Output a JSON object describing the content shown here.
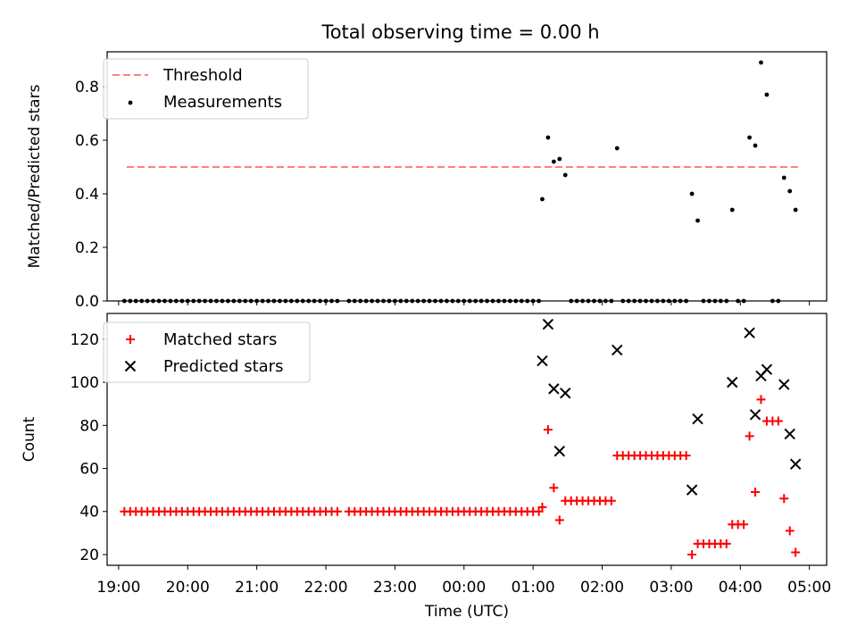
{
  "chart_data": [
    {
      "type": "scatter",
      "title": "Total observing time = 0.00 h",
      "xlabel": "",
      "ylabel": "Matched/Predicted stars",
      "xlim": [
        "18:50",
        "05:15"
      ],
      "ylim": [
        0,
        0.93
      ],
      "yticks": [
        "0.0",
        "0.2",
        "0.4",
        "0.6",
        "0.8"
      ],
      "legend": "upper-left",
      "threshold": {
        "name": "Threshold",
        "value": 0.5,
        "x_start": "19:07",
        "x_end": "04:50",
        "color": "#ff7f7f"
      },
      "series": [
        {
          "name": "Measurements",
          "color": "#000000",
          "points": [
            [
              "19:05",
              0
            ],
            [
              "19:10",
              0
            ],
            [
              "19:15",
              0
            ],
            [
              "19:20",
              0
            ],
            [
              "19:25",
              0
            ],
            [
              "19:30",
              0
            ],
            [
              "19:35",
              0
            ],
            [
              "19:40",
              0
            ],
            [
              "19:45",
              0
            ],
            [
              "19:50",
              0
            ],
            [
              "19:55",
              0
            ],
            [
              "20:00",
              0
            ],
            [
              "20:05",
              0
            ],
            [
              "20:10",
              0
            ],
            [
              "20:15",
              0
            ],
            [
              "20:20",
              0
            ],
            [
              "20:25",
              0
            ],
            [
              "20:30",
              0
            ],
            [
              "20:35",
              0
            ],
            [
              "20:40",
              0
            ],
            [
              "20:45",
              0
            ],
            [
              "20:50",
              0
            ],
            [
              "20:55",
              0
            ],
            [
              "21:00",
              0
            ],
            [
              "21:05",
              0
            ],
            [
              "21:10",
              0
            ],
            [
              "21:15",
              0
            ],
            [
              "21:20",
              0
            ],
            [
              "21:25",
              0
            ],
            [
              "21:30",
              0
            ],
            [
              "21:35",
              0
            ],
            [
              "21:40",
              0
            ],
            [
              "21:45",
              0
            ],
            [
              "21:50",
              0
            ],
            [
              "21:55",
              0
            ],
            [
              "22:00",
              0
            ],
            [
              "22:05",
              0
            ],
            [
              "22:10",
              0
            ],
            [
              "22:20",
              0
            ],
            [
              "22:25",
              0
            ],
            [
              "22:30",
              0
            ],
            [
              "22:35",
              0
            ],
            [
              "22:40",
              0
            ],
            [
              "22:45",
              0
            ],
            [
              "22:50",
              0
            ],
            [
              "22:55",
              0
            ],
            [
              "23:00",
              0
            ],
            [
              "23:05",
              0
            ],
            [
              "23:10",
              0
            ],
            [
              "23:15",
              0
            ],
            [
              "23:20",
              0
            ],
            [
              "23:25",
              0
            ],
            [
              "23:30",
              0
            ],
            [
              "23:35",
              0
            ],
            [
              "23:40",
              0
            ],
            [
              "23:45",
              0
            ],
            [
              "23:50",
              0
            ],
            [
              "23:55",
              0
            ],
            [
              "00:00",
              0
            ],
            [
              "00:05",
              0
            ],
            [
              "00:10",
              0
            ],
            [
              "00:15",
              0
            ],
            [
              "00:20",
              0
            ],
            [
              "00:25",
              0
            ],
            [
              "00:30",
              0
            ],
            [
              "00:35",
              0
            ],
            [
              "00:40",
              0
            ],
            [
              "00:45",
              0
            ],
            [
              "00:50",
              0
            ],
            [
              "00:55",
              0
            ],
            [
              "01:00",
              0
            ],
            [
              "01:05",
              0
            ],
            [
              "01:08",
              0.38
            ],
            [
              "01:13",
              0.61
            ],
            [
              "01:18",
              0.52
            ],
            [
              "01:23",
              0.53
            ],
            [
              "01:28",
              0.47
            ],
            [
              "01:33",
              0
            ],
            [
              "01:38",
              0
            ],
            [
              "01:43",
              0
            ],
            [
              "01:48",
              0
            ],
            [
              "01:53",
              0
            ],
            [
              "01:58",
              0
            ],
            [
              "02:03",
              0
            ],
            [
              "02:08",
              0
            ],
            [
              "02:13",
              0.57
            ],
            [
              "02:18",
              0
            ],
            [
              "02:23",
              0
            ],
            [
              "02:28",
              0
            ],
            [
              "02:33",
              0
            ],
            [
              "02:38",
              0
            ],
            [
              "02:43",
              0
            ],
            [
              "02:48",
              0
            ],
            [
              "02:53",
              0
            ],
            [
              "02:58",
              0
            ],
            [
              "03:03",
              0
            ],
            [
              "03:08",
              0
            ],
            [
              "03:13",
              0
            ],
            [
              "03:18",
              0.4
            ],
            [
              "03:23",
              0.3
            ],
            [
              "03:28",
              0
            ],
            [
              "03:33",
              0
            ],
            [
              "03:38",
              0
            ],
            [
              "03:43",
              0
            ],
            [
              "03:48",
              0
            ],
            [
              "03:53",
              0.34
            ],
            [
              "03:58",
              0
            ],
            [
              "04:03",
              0
            ],
            [
              "04:08",
              0.61
            ],
            [
              "04:13",
              0.58
            ],
            [
              "04:18",
              0.89
            ],
            [
              "04:23",
              0.77
            ],
            [
              "04:28",
              0
            ],
            [
              "04:33",
              0
            ],
            [
              "04:38",
              0.46
            ],
            [
              "04:43",
              0.41
            ],
            [
              "04:48",
              0.34
            ]
          ]
        }
      ]
    },
    {
      "type": "scatter",
      "title": "",
      "xlabel": "Time (UTC)",
      "ylabel": "Count",
      "xlim": [
        "18:50",
        "05:15"
      ],
      "ylim": [
        15,
        132
      ],
      "yticks": [
        "20",
        "40",
        "60",
        "80",
        "100",
        "120"
      ],
      "xticks": [
        "19:00",
        "20:00",
        "21:00",
        "22:00",
        "23:00",
        "00:00",
        "01:00",
        "02:00",
        "03:00",
        "04:00",
        "05:00"
      ],
      "legend": "upper-left",
      "series": [
        {
          "name": "Matched stars",
          "marker": "plus",
          "color": "#ff0000",
          "points": [
            [
              "19:05",
              40
            ],
            [
              "19:10",
              40
            ],
            [
              "19:15",
              40
            ],
            [
              "19:20",
              40
            ],
            [
              "19:25",
              40
            ],
            [
              "19:30",
              40
            ],
            [
              "19:35",
              40
            ],
            [
              "19:40",
              40
            ],
            [
              "19:45",
              40
            ],
            [
              "19:50",
              40
            ],
            [
              "19:55",
              40
            ],
            [
              "20:00",
              40
            ],
            [
              "20:05",
              40
            ],
            [
              "20:10",
              40
            ],
            [
              "20:15",
              40
            ],
            [
              "20:20",
              40
            ],
            [
              "20:25",
              40
            ],
            [
              "20:30",
              40
            ],
            [
              "20:35",
              40
            ],
            [
              "20:40",
              40
            ],
            [
              "20:45",
              40
            ],
            [
              "20:50",
              40
            ],
            [
              "20:55",
              40
            ],
            [
              "21:00",
              40
            ],
            [
              "21:05",
              40
            ],
            [
              "21:10",
              40
            ],
            [
              "21:15",
              40
            ],
            [
              "21:20",
              40
            ],
            [
              "21:25",
              40
            ],
            [
              "21:30",
              40
            ],
            [
              "21:35",
              40
            ],
            [
              "21:40",
              40
            ],
            [
              "21:45",
              40
            ],
            [
              "21:50",
              40
            ],
            [
              "21:55",
              40
            ],
            [
              "22:00",
              40
            ],
            [
              "22:05",
              40
            ],
            [
              "22:10",
              40
            ],
            [
              "22:20",
              40
            ],
            [
              "22:25",
              40
            ],
            [
              "22:30",
              40
            ],
            [
              "22:35",
              40
            ],
            [
              "22:40",
              40
            ],
            [
              "22:45",
              40
            ],
            [
              "22:50",
              40
            ],
            [
              "22:55",
              40
            ],
            [
              "23:00",
              40
            ],
            [
              "23:05",
              40
            ],
            [
              "23:10",
              40
            ],
            [
              "23:15",
              40
            ],
            [
              "23:20",
              40
            ],
            [
              "23:25",
              40
            ],
            [
              "23:30",
              40
            ],
            [
              "23:35",
              40
            ],
            [
              "23:40",
              40
            ],
            [
              "23:45",
              40
            ],
            [
              "23:50",
              40
            ],
            [
              "23:55",
              40
            ],
            [
              "00:00",
              40
            ],
            [
              "00:05",
              40
            ],
            [
              "00:10",
              40
            ],
            [
              "00:15",
              40
            ],
            [
              "00:20",
              40
            ],
            [
              "00:25",
              40
            ],
            [
              "00:30",
              40
            ],
            [
              "00:35",
              40
            ],
            [
              "00:40",
              40
            ],
            [
              "00:45",
              40
            ],
            [
              "00:50",
              40
            ],
            [
              "00:55",
              40
            ],
            [
              "01:00",
              40
            ],
            [
              "01:05",
              40
            ],
            [
              "01:08",
              42
            ],
            [
              "01:13",
              78
            ],
            [
              "01:18",
              51
            ],
            [
              "01:23",
              36
            ],
            [
              "01:28",
              45
            ],
            [
              "01:33",
              45
            ],
            [
              "01:38",
              45
            ],
            [
              "01:43",
              45
            ],
            [
              "01:48",
              45
            ],
            [
              "01:53",
              45
            ],
            [
              "01:58",
              45
            ],
            [
              "02:03",
              45
            ],
            [
              "02:08",
              45
            ],
            [
              "02:13",
              66
            ],
            [
              "02:18",
              66
            ],
            [
              "02:23",
              66
            ],
            [
              "02:28",
              66
            ],
            [
              "02:33",
              66
            ],
            [
              "02:38",
              66
            ],
            [
              "02:43",
              66
            ],
            [
              "02:48",
              66
            ],
            [
              "02:53",
              66
            ],
            [
              "02:58",
              66
            ],
            [
              "03:03",
              66
            ],
            [
              "03:08",
              66
            ],
            [
              "03:13",
              66
            ],
            [
              "03:18",
              20
            ],
            [
              "03:23",
              25
            ],
            [
              "03:28",
              25
            ],
            [
              "03:33",
              25
            ],
            [
              "03:38",
              25
            ],
            [
              "03:43",
              25
            ],
            [
              "03:48",
              25
            ],
            [
              "03:53",
              34
            ],
            [
              "03:58",
              34
            ],
            [
              "04:03",
              34
            ],
            [
              "04:08",
              75
            ],
            [
              "04:13",
              49
            ],
            [
              "04:18",
              92
            ],
            [
              "04:23",
              82
            ],
            [
              "04:28",
              82
            ],
            [
              "04:33",
              82
            ],
            [
              "04:38",
              46
            ],
            [
              "04:43",
              31
            ],
            [
              "04:48",
              21
            ]
          ]
        },
        {
          "name": "Predicted stars",
          "marker": "x",
          "color": "#000000",
          "points": [
            [
              "01:08",
              110
            ],
            [
              "01:13",
              127
            ],
            [
              "01:18",
              97
            ],
            [
              "01:23",
              68
            ],
            [
              "01:28",
              95
            ],
            [
              "02:13",
              115
            ],
            [
              "03:18",
              50
            ],
            [
              "03:23",
              83
            ],
            [
              "03:53",
              100
            ],
            [
              "04:08",
              123
            ],
            [
              "04:13",
              85
            ],
            [
              "04:18",
              103
            ],
            [
              "04:23",
              106
            ],
            [
              "04:38",
              99
            ],
            [
              "04:43",
              76
            ],
            [
              "04:48",
              62
            ]
          ]
        }
      ]
    }
  ]
}
